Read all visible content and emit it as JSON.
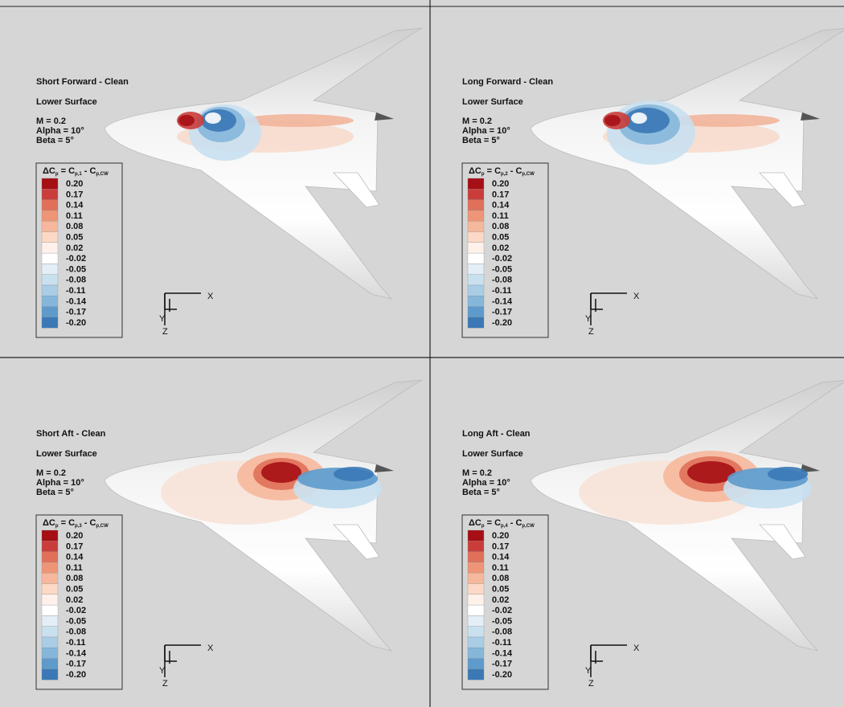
{
  "panels": [
    {
      "title": "Short Forward - Clean",
      "surface": "Lower Surface",
      "conditions": [
        "M = 0.2",
        "Alpha = 10°",
        "Beta = 5°"
      ],
      "legend_title": [
        "ΔC",
        "p",
        " = C",
        "p,1",
        " - C",
        "p,CW"
      ]
    },
    {
      "title": "Long Forward - Clean",
      "surface": "Lower Surface",
      "conditions": [
        "M = 0.2",
        "Alpha = 10°",
        "Beta = 5°"
      ],
      "legend_title": [
        "ΔC",
        "p",
        " = C",
        "p,2",
        " - C",
        "p,CW"
      ]
    },
    {
      "title": "Short Aft - Clean",
      "surface": "Lower Surface",
      "conditions": [
        "M = 0.2",
        "Alpha = 10°",
        "Beta = 5°"
      ],
      "legend_title": [
        "ΔC",
        "p",
        " = C",
        "p,3",
        " - C",
        "p,CW"
      ]
    },
    {
      "title": "Long Aft - Clean",
      "surface": "Lower Surface",
      "conditions": [
        "M = 0.2",
        "Alpha = 10°",
        "Beta = 5°"
      ],
      "legend_title": [
        "ΔC",
        "p",
        " = C",
        "p,4",
        " - C",
        "p,CW"
      ]
    }
  ],
  "legend_levels": [
    "0.20",
    "0.17",
    "0.14",
    "0.11",
    "0.08",
    "0.05",
    "0.02",
    "-0.02",
    "-0.05",
    "-0.08",
    "-0.11",
    "-0.14",
    "-0.17",
    "-0.20"
  ],
  "legend_colors": [
    "#a50f15",
    "#cb3d3b",
    "#e0705a",
    "#ee9577",
    "#f6b89c",
    "#fbd9c6",
    "#fdf1ea",
    "#ffffff",
    "#e3eef6",
    "#c9e0ef",
    "#a9cde5",
    "#86b7da",
    "#5e9bcc",
    "#3a79b6"
  ],
  "axes": [
    "X",
    "Y",
    "Z"
  ]
}
